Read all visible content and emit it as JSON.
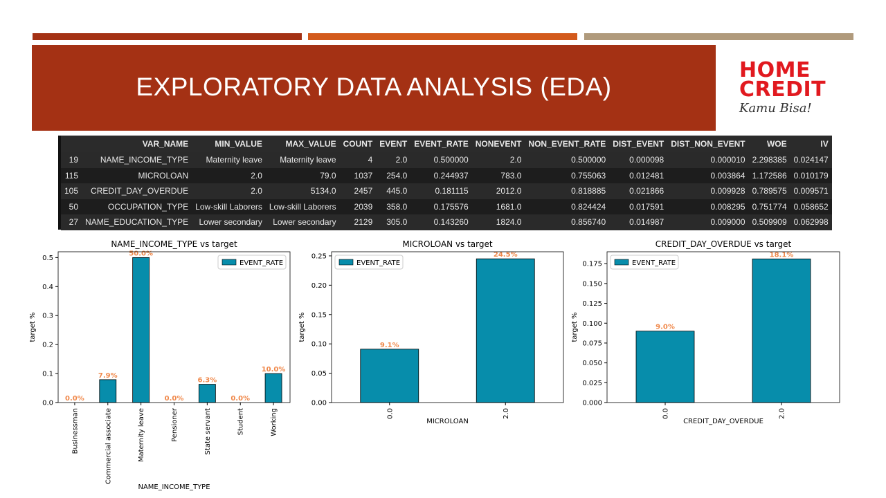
{
  "header": {
    "title": "EXPLORATORY DATA ANALYSIS (EDA)",
    "stripe_colors": [
      "#a43114",
      "#d35a1c",
      "#b09a7c"
    ]
  },
  "logo": {
    "line1": "HOME",
    "line2": "CREDIT",
    "tagline": "Kamu Bisa!"
  },
  "table": {
    "columns": [
      "",
      "VAR_NAME",
      "MIN_VALUE",
      "MAX_VALUE",
      "COUNT",
      "EVENT",
      "EVENT_RATE",
      "NONEVENT",
      "NON_EVENT_RATE",
      "DIST_EVENT",
      "DIST_NON_EVENT",
      "WOE",
      "IV"
    ],
    "rows": [
      [
        "19",
        "NAME_INCOME_TYPE",
        "Maternity leave",
        "Maternity leave",
        "4",
        "2.0",
        "0.500000",
        "2.0",
        "0.500000",
        "0.000098",
        "0.000010",
        "2.298385",
        "0.024147"
      ],
      [
        "115",
        "MICROLOAN",
        "2.0",
        "79.0",
        "1037",
        "254.0",
        "0.244937",
        "783.0",
        "0.755063",
        "0.012481",
        "0.003864",
        "1.172586",
        "0.010179"
      ],
      [
        "105",
        "CREDIT_DAY_OVERDUE",
        "2.0",
        "5134.0",
        "2457",
        "445.0",
        "0.181115",
        "2012.0",
        "0.818885",
        "0.021866",
        "0.009928",
        "0.789575",
        "0.009571"
      ],
      [
        "50",
        "OCCUPATION_TYPE",
        "Low-skill Laborers",
        "Low-skill Laborers",
        "2039",
        "358.0",
        "0.175576",
        "1681.0",
        "0.824424",
        "0.017591",
        "0.008295",
        "0.751774",
        "0.058652"
      ],
      [
        "27",
        "NAME_EDUCATION_TYPE",
        "Lower secondary",
        "Lower secondary",
        "2129",
        "305.0",
        "0.143260",
        "1824.0",
        "0.856740",
        "0.014987",
        "0.009000",
        "0.509909",
        "0.062998"
      ]
    ]
  },
  "chart_data": [
    {
      "type": "bar",
      "title": "NAME_INCOME_TYPE vs target",
      "xlabel": "NAME_INCOME_TYPE",
      "ylabel": "target %",
      "categories": [
        "Businessman",
        "Commercial associate",
        "Maternity leave",
        "Pensioner",
        "State servant",
        "Student",
        "Working"
      ],
      "series": [
        {
          "name": "EVENT_RATE",
          "values": [
            0.0,
            0.079,
            0.5,
            0.0,
            0.063,
            0.0,
            0.1
          ]
        }
      ],
      "bar_labels": [
        "0.0%",
        "7.9%",
        "50.0%",
        "0.0%",
        "6.3%",
        "0.0%",
        "10.0%"
      ],
      "ylim": [
        0,
        0.52
      ],
      "yticks": [
        "0.0",
        "0.1",
        "0.2",
        "0.3",
        "0.4",
        "0.5"
      ],
      "ytick_values": [
        0,
        0.1,
        0.2,
        0.3,
        0.4,
        0.5
      ],
      "legend": "upper right",
      "bar_color": "#078dab",
      "label_color": "#f0884a"
    },
    {
      "type": "bar",
      "title": "MICROLOAN vs target",
      "xlabel": "MICROLOAN",
      "ylabel": "target %",
      "categories": [
        "0.0",
        "2.0"
      ],
      "series": [
        {
          "name": "EVENT_RATE",
          "values": [
            0.091,
            0.245
          ]
        }
      ],
      "bar_labels": [
        "9.1%",
        "24.5%"
      ],
      "ylim": [
        0,
        0.257
      ],
      "yticks": [
        "0.00",
        "0.05",
        "0.10",
        "0.15",
        "0.20",
        "0.25"
      ],
      "ytick_values": [
        0,
        0.05,
        0.1,
        0.15,
        0.2,
        0.25
      ],
      "legend": "upper left",
      "bar_color": "#078dab",
      "label_color": "#f0884a"
    },
    {
      "type": "bar",
      "title": "CREDIT_DAY_OVERDUE vs target",
      "xlabel": "CREDIT_DAY_OVERDUE",
      "ylabel": "target %",
      "categories": [
        "0.0",
        "2.0"
      ],
      "series": [
        {
          "name": "EVENT_RATE",
          "values": [
            0.09,
            0.181
          ]
        }
      ],
      "bar_labels": [
        "9.0%",
        "18.1%"
      ],
      "ylim": [
        0,
        0.19
      ],
      "yticks": [
        "0.000",
        "0.025",
        "0.050",
        "0.075",
        "0.100",
        "0.125",
        "0.150",
        "0.175"
      ],
      "ytick_values": [
        0,
        0.025,
        0.05,
        0.075,
        0.1,
        0.125,
        0.15,
        0.175
      ],
      "legend": "upper left",
      "bar_color": "#078dab",
      "label_color": "#f0884a"
    }
  ]
}
